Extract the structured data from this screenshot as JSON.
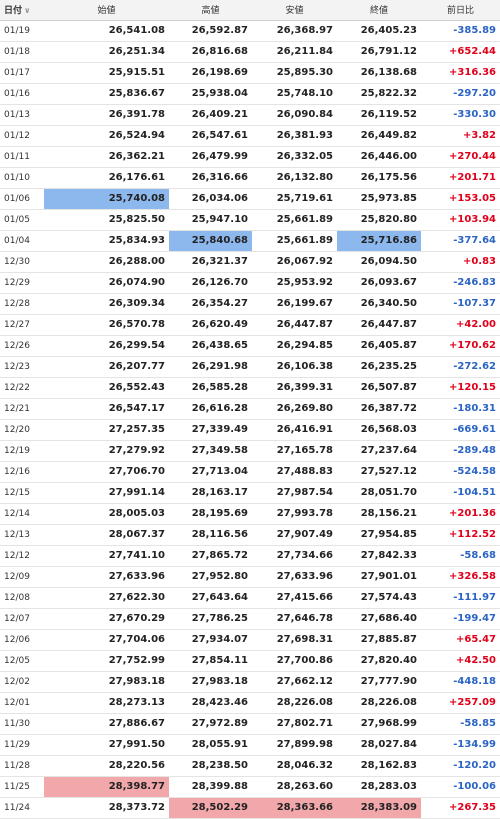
{
  "colors": {
    "positive": "#e0001a",
    "negative": "#2a64c5",
    "highlight_low": "#8db8ee",
    "highlight_high": "#f2a8ab"
  },
  "header": {
    "date": "日付",
    "sort_icon": "chevron-down-icon",
    "open": "始値",
    "high": "高値",
    "low": "安値",
    "close": "終値",
    "change": "前日比"
  },
  "rows": [
    {
      "date": "01/19",
      "open": "26,541.08",
      "high": "26,592.87",
      "low": "26,368.97",
      "close": "26,405.23",
      "change": "-385.89",
      "dir": "neg"
    },
    {
      "date": "01/18",
      "open": "26,251.34",
      "high": "26,816.68",
      "low": "26,211.84",
      "close": "26,791.12",
      "change": "+652.44",
      "dir": "pos"
    },
    {
      "date": "01/17",
      "open": "25,915.51",
      "high": "26,198.69",
      "low": "25,895.30",
      "close": "26,138.68",
      "change": "+316.36",
      "dir": "pos"
    },
    {
      "date": "01/16",
      "open": "25,836.67",
      "high": "25,938.04",
      "low": "25,748.10",
      "close": "25,822.32",
      "change": "-297.20",
      "dir": "neg"
    },
    {
      "date": "01/13",
      "open": "26,391.78",
      "high": "26,409.21",
      "low": "26,090.84",
      "close": "26,119.52",
      "change": "-330.30",
      "dir": "neg"
    },
    {
      "date": "01/12",
      "open": "26,524.94",
      "high": "26,547.61",
      "low": "26,381.93",
      "close": "26,449.82",
      "change": "+3.82",
      "dir": "pos"
    },
    {
      "date": "01/11",
      "open": "26,362.21",
      "high": "26,479.99",
      "low": "26,332.05",
      "close": "26,446.00",
      "change": "+270.44",
      "dir": "pos"
    },
    {
      "date": "01/10",
      "open": "26,176.61",
      "high": "26,316.66",
      "low": "26,132.80",
      "close": "26,175.56",
      "change": "+201.71",
      "dir": "pos"
    },
    {
      "date": "01/06",
      "open": "25,740.08",
      "high": "26,034.06",
      "low": "25,719.61",
      "close": "25,973.85",
      "change": "+153.05",
      "dir": "pos",
      "hl": {
        "open": "blue"
      }
    },
    {
      "date": "01/05",
      "open": "25,825.50",
      "high": "25,947.10",
      "low": "25,661.89",
      "close": "25,820.80",
      "change": "+103.94",
      "dir": "pos"
    },
    {
      "date": "01/04",
      "open": "25,834.93",
      "high": "25,840.68",
      "low": "25,661.89",
      "close": "25,716.86",
      "change": "-377.64",
      "dir": "neg",
      "hl": {
        "high": "blue",
        "close": "blue"
      }
    },
    {
      "date": "12/30",
      "open": "26,288.00",
      "high": "26,321.37",
      "low": "26,067.92",
      "close": "26,094.50",
      "change": "+0.83",
      "dir": "pos"
    },
    {
      "date": "12/29",
      "open": "26,074.90",
      "high": "26,126.70",
      "low": "25,953.92",
      "close": "26,093.67",
      "change": "-246.83",
      "dir": "neg"
    },
    {
      "date": "12/28",
      "open": "26,309.34",
      "high": "26,354.27",
      "low": "26,199.67",
      "close": "26,340.50",
      "change": "-107.37",
      "dir": "neg"
    },
    {
      "date": "12/27",
      "open": "26,570.78",
      "high": "26,620.49",
      "low": "26,447.87",
      "close": "26,447.87",
      "change": "+42.00",
      "dir": "pos"
    },
    {
      "date": "12/26",
      "open": "26,299.54",
      "high": "26,438.65",
      "low": "26,294.85",
      "close": "26,405.87",
      "change": "+170.62",
      "dir": "pos"
    },
    {
      "date": "12/23",
      "open": "26,207.77",
      "high": "26,291.98",
      "low": "26,106.38",
      "close": "26,235.25",
      "change": "-272.62",
      "dir": "neg"
    },
    {
      "date": "12/22",
      "open": "26,552.43",
      "high": "26,585.28",
      "low": "26,399.31",
      "close": "26,507.87",
      "change": "+120.15",
      "dir": "pos"
    },
    {
      "date": "12/21",
      "open": "26,547.17",
      "high": "26,616.28",
      "low": "26,269.80",
      "close": "26,387.72",
      "change": "-180.31",
      "dir": "neg"
    },
    {
      "date": "12/20",
      "open": "27,257.35",
      "high": "27,339.49",
      "low": "26,416.91",
      "close": "26,568.03",
      "change": "-669.61",
      "dir": "neg"
    },
    {
      "date": "12/19",
      "open": "27,279.92",
      "high": "27,349.58",
      "low": "27,165.78",
      "close": "27,237.64",
      "change": "-289.48",
      "dir": "neg"
    },
    {
      "date": "12/16",
      "open": "27,706.70",
      "high": "27,713.04",
      "low": "27,488.83",
      "close": "27,527.12",
      "change": "-524.58",
      "dir": "neg"
    },
    {
      "date": "12/15",
      "open": "27,991.14",
      "high": "28,163.17",
      "low": "27,987.54",
      "close": "28,051.70",
      "change": "-104.51",
      "dir": "neg"
    },
    {
      "date": "12/14",
      "open": "28,005.03",
      "high": "28,195.69",
      "low": "27,993.78",
      "close": "28,156.21",
      "change": "+201.36",
      "dir": "pos"
    },
    {
      "date": "12/13",
      "open": "28,067.37",
      "high": "28,116.56",
      "low": "27,907.49",
      "close": "27,954.85",
      "change": "+112.52",
      "dir": "pos"
    },
    {
      "date": "12/12",
      "open": "27,741.10",
      "high": "27,865.72",
      "low": "27,734.66",
      "close": "27,842.33",
      "change": "-58.68",
      "dir": "neg"
    },
    {
      "date": "12/09",
      "open": "27,633.96",
      "high": "27,952.80",
      "low": "27,633.96",
      "close": "27,901.01",
      "change": "+326.58",
      "dir": "pos"
    },
    {
      "date": "12/08",
      "open": "27,622.30",
      "high": "27,643.64",
      "low": "27,415.66",
      "close": "27,574.43",
      "change": "-111.97",
      "dir": "neg"
    },
    {
      "date": "12/07",
      "open": "27,670.29",
      "high": "27,786.25",
      "low": "27,646.78",
      "close": "27,686.40",
      "change": "-199.47",
      "dir": "neg"
    },
    {
      "date": "12/06",
      "open": "27,704.06",
      "high": "27,934.07",
      "low": "27,698.31",
      "close": "27,885.87",
      "change": "+65.47",
      "dir": "pos"
    },
    {
      "date": "12/05",
      "open": "27,752.99",
      "high": "27,854.11",
      "low": "27,700.86",
      "close": "27,820.40",
      "change": "+42.50",
      "dir": "pos"
    },
    {
      "date": "12/02",
      "open": "27,983.18",
      "high": "27,983.18",
      "low": "27,662.12",
      "close": "27,777.90",
      "change": "-448.18",
      "dir": "neg"
    },
    {
      "date": "12/01",
      "open": "28,273.13",
      "high": "28,423.46",
      "low": "28,226.08",
      "close": "28,226.08",
      "change": "+257.09",
      "dir": "pos"
    },
    {
      "date": "11/30",
      "open": "27,886.67",
      "high": "27,972.89",
      "low": "27,802.71",
      "close": "27,968.99",
      "change": "-58.85",
      "dir": "neg"
    },
    {
      "date": "11/29",
      "open": "27,991.50",
      "high": "28,055.91",
      "low": "27,899.98",
      "close": "28,027.84",
      "change": "-134.99",
      "dir": "neg"
    },
    {
      "date": "11/28",
      "open": "28,220.56",
      "high": "28,238.50",
      "low": "28,046.32",
      "close": "28,162.83",
      "change": "-120.20",
      "dir": "neg"
    },
    {
      "date": "11/25",
      "open": "28,398.77",
      "high": "28,399.88",
      "low": "28,263.60",
      "close": "28,283.03",
      "change": "-100.06",
      "dir": "neg",
      "hl": {
        "open": "pink"
      }
    },
    {
      "date": "11/24",
      "open": "28,373.72",
      "high": "28,502.29",
      "low": "28,363.66",
      "close": "28,383.09",
      "change": "+267.35",
      "dir": "pos",
      "hl": {
        "high": "pink",
        "low": "pink",
        "close": "pink"
      }
    }
  ]
}
